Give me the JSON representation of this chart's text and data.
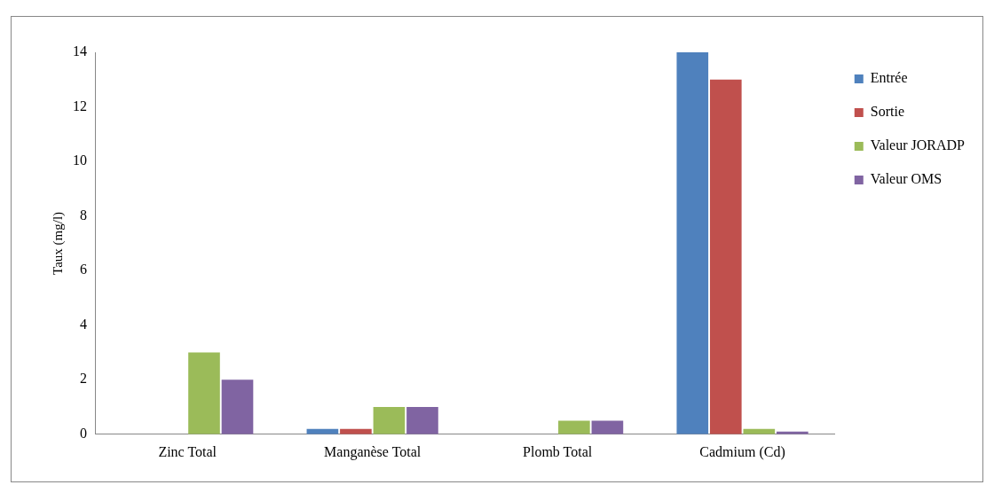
{
  "chart_data": {
    "type": "bar",
    "ylabel": "Taux (mg/l)",
    "categories": [
      "Zinc Total",
      "Manganèse Total",
      "Plomb Total",
      "Cadmium (Cd)"
    ],
    "series": [
      {
        "name": "Entrée",
        "color": "#4f81bd",
        "values": [
          null,
          0.2,
          null,
          14
        ]
      },
      {
        "name": "Sortie",
        "color": "#c0504d",
        "values": [
          null,
          0.2,
          null,
          13
        ]
      },
      {
        "name": "Valeur JORADP",
        "color": "#9bbb59",
        "values": [
          3,
          1,
          0.5,
          0.2
        ]
      },
      {
        "name": "Valeur OMS",
        "color": "#8064a2",
        "values": [
          2,
          1,
          0.5,
          0.1
        ]
      }
    ],
    "ylim": [
      0,
      14
    ],
    "yticks": [
      0,
      2,
      4,
      6,
      8,
      10,
      12,
      14
    ],
    "grid": false,
    "legend": "right"
  }
}
